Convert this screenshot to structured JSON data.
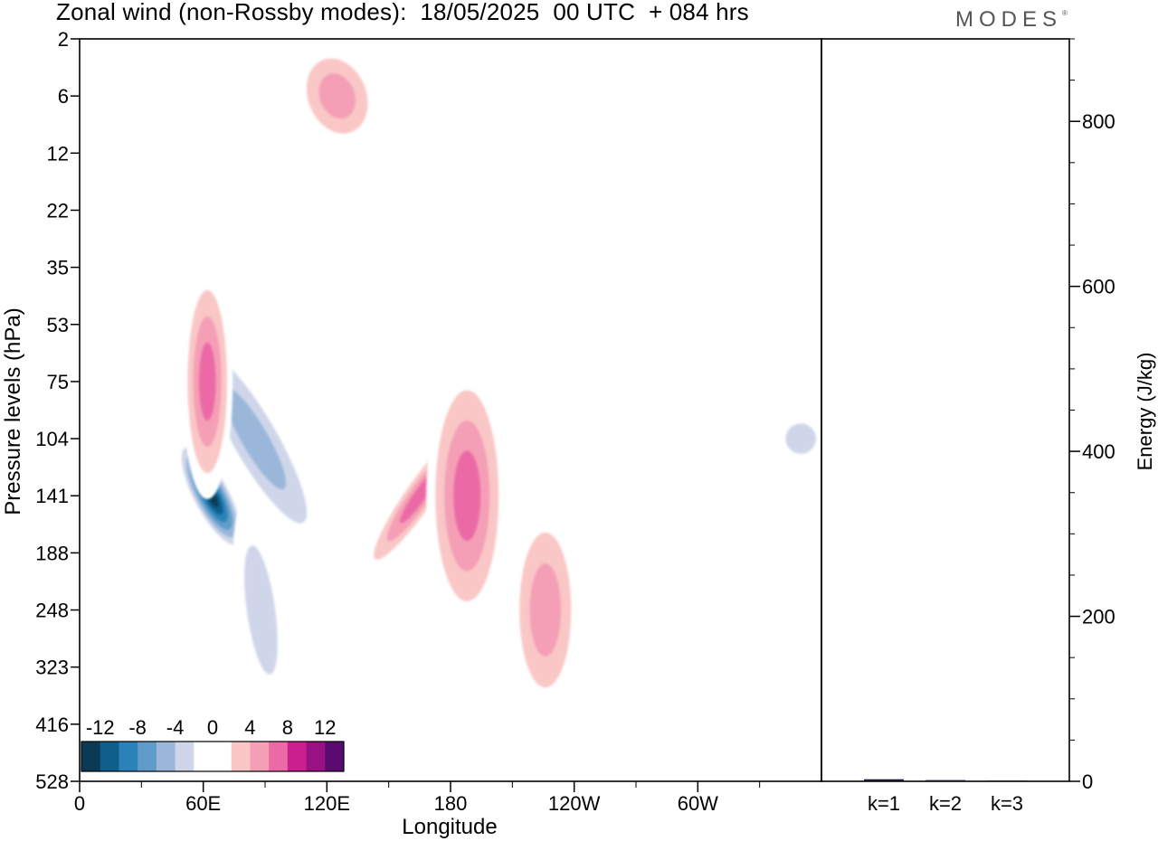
{
  "title": "Zonal wind (non-Rossby modes):  18/05/2025  00 UTC  + 084 hrs",
  "logo": "MODES",
  "logo_mark": "®",
  "chart_data": [
    {
      "type": "heatmap",
      "title": "Zonal wind (non-Rossby modes):  18/05/2025  00 UTC  + 084 hrs",
      "xlabel": "Longitude",
      "ylabel": "Pressure levels (hPa)",
      "x_ticks": [
        "0",
        "60E",
        "120E",
        "180",
        "120W",
        "60W"
      ],
      "x_tick_degrees": [
        0,
        60,
        120,
        180,
        240,
        300
      ],
      "xlim": [
        0,
        360
      ],
      "y_ticks": [
        2,
        6,
        12,
        22,
        35,
        53,
        75,
        104,
        141,
        188,
        248,
        323,
        416,
        528
      ],
      "colorbar_labels": [
        "-12",
        "-8",
        "-4",
        "0",
        "4",
        "8",
        "12"
      ],
      "colorbar_levels": [
        -14,
        -12,
        -10,
        -8,
        -6,
        -4,
        -2,
        2,
        4,
        6,
        8,
        10,
        12,
        14
      ],
      "colorbar_colors": [
        "#0b3a55",
        "#0f5f8c",
        "#2a82b8",
        "#5f9cc9",
        "#9ab7da",
        "#cfd6ea",
        "#ffffff",
        "#ffffff",
        "#f9c7c6",
        "#f59fb6",
        "#eb6aa6",
        "#cc1f8f",
        "#9a1184",
        "#5a0a6f"
      ],
      "features": [
        {
          "level": 141,
          "lon": 64,
          "value": -14
        },
        {
          "level": 104,
          "lon": 85,
          "value": -6
        },
        {
          "level": 248,
          "lon": 88,
          "value": -4
        },
        {
          "level": 141,
          "lon": 165,
          "value": 8
        },
        {
          "level": 141,
          "lon": 188,
          "value": 8
        },
        {
          "level": 248,
          "lon": 226,
          "value": 6
        },
        {
          "level": 75,
          "lon": 62,
          "value": 8
        },
        {
          "level": 6,
          "lon": 125,
          "value": 6
        },
        {
          "level": 104,
          "lon": 350,
          "value": -4
        }
      ]
    },
    {
      "type": "bar",
      "categories": [
        "k=1",
        "k=2",
        "k=3"
      ],
      "values": [
        2.5,
        1.5,
        1
      ],
      "ylabel": "Energy (J/kg)",
      "ylim": [
        0,
        900
      ],
      "y_ticks": [
        0,
        200,
        400,
        600,
        800
      ]
    }
  ]
}
